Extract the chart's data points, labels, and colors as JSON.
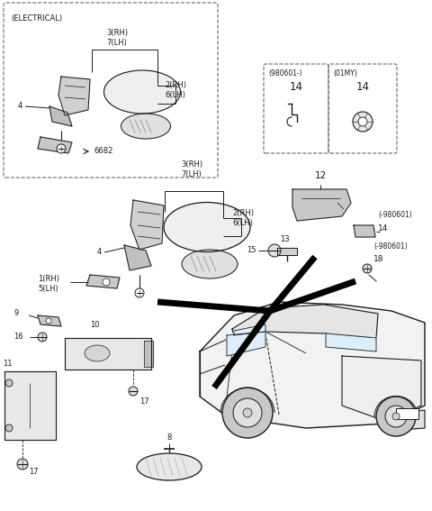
{
  "bg_color": "#ffffff",
  "lc": "#1a1a1a",
  "dc": "#666666",
  "fs": 6.5,
  "fs_sm": 5.5,
  "fs_lg": 8.5,
  "labels": {
    "electrical": "(ELECTRICAL)",
    "t3rh7lh": "3(RH)\n7(LH)",
    "t2rh6lh": "2(RH)\n6(LH)",
    "t4": "4",
    "t6682": "6682",
    "box1_hdr": "(980601-)",
    "box1_num": "14",
    "box2_hdr": "(01MY)",
    "box2_num": "14",
    "m3rh7lh": "3(RH)\n7(LH)",
    "m2rh6lh": "2(RH)\n6(LH)",
    "m4": "4",
    "n1rh5lh": "1(RH)\n5(LH)",
    "n12": "12",
    "n14_a": "(-980601)",
    "n14_b": "14",
    "n15": "15",
    "n18_a": "(-980601)",
    "n18_b": "18",
    "n13": "13",
    "n9": "9",
    "n16": "16",
    "n10": "10",
    "n11": "11",
    "n17a": "17",
    "n17b": "17",
    "n8": "8"
  }
}
